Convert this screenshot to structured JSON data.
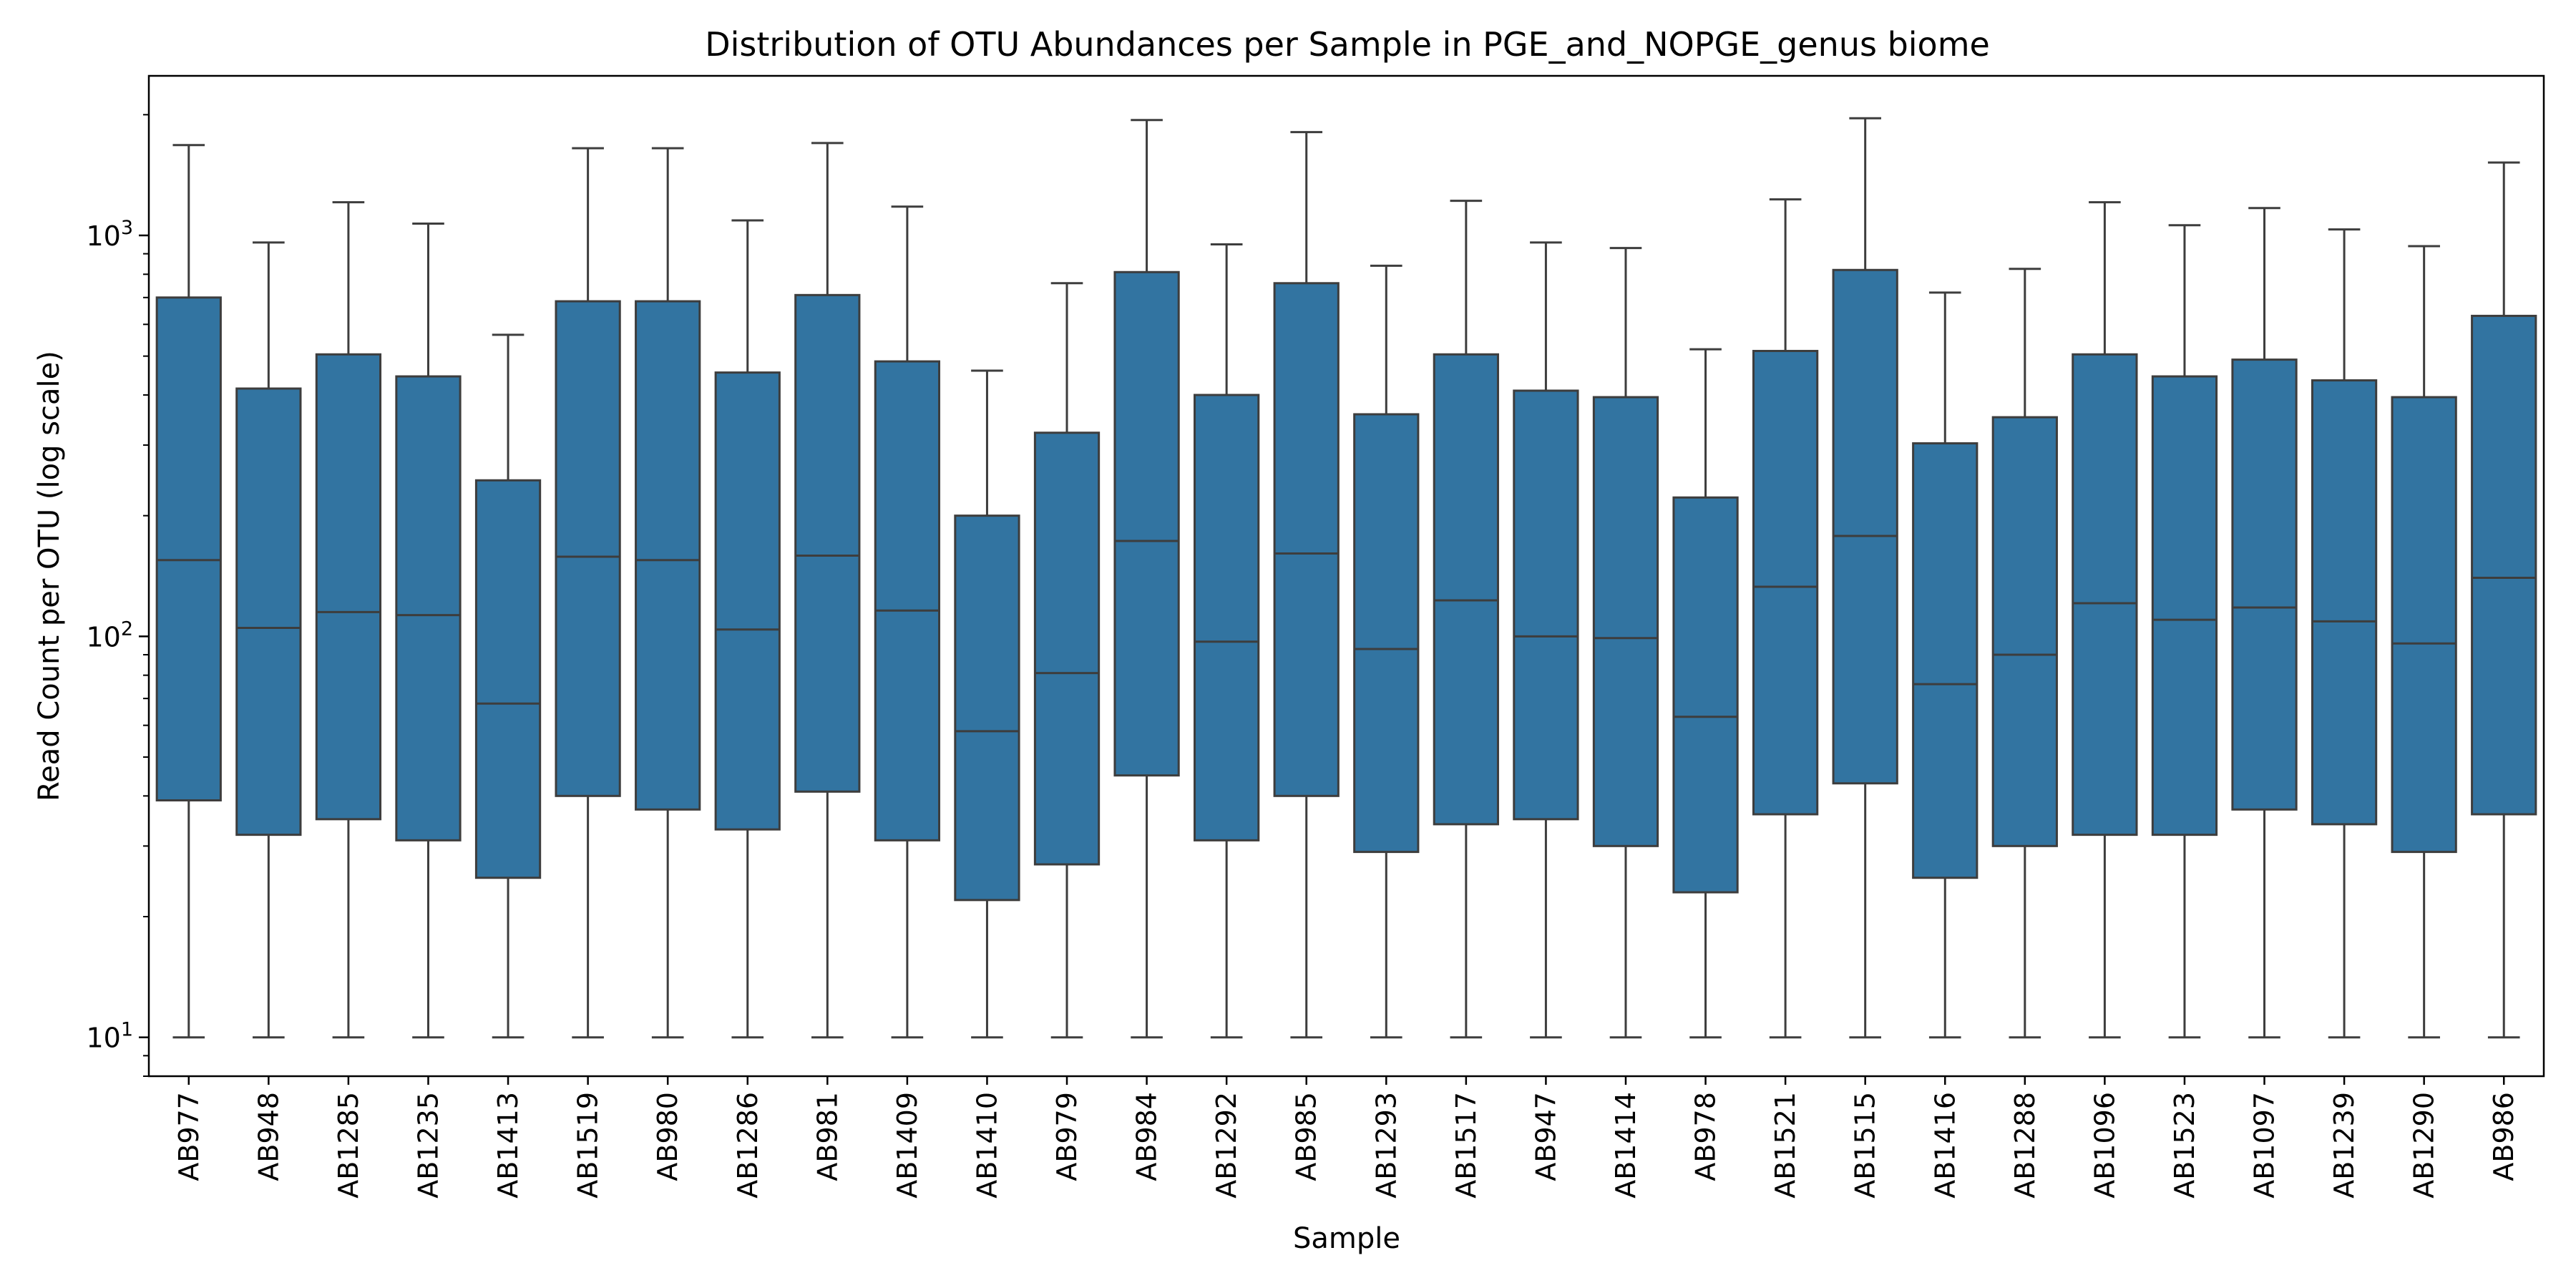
{
  "chart_data": {
    "type": "box",
    "title": "Distribution of OTU Abundances per Sample in  PGE_and_NOPGE_genus biome",
    "xlabel": "Sample",
    "ylabel": "Read Count per OTU (log scale)",
    "yscale": "log",
    "ylim": [
      8,
      2500
    ],
    "yticks": [
      {
        "value": 10,
        "base": "10",
        "exp": "1"
      },
      {
        "value": 100,
        "base": "10",
        "exp": "2"
      },
      {
        "value": 1000,
        "base": "10",
        "exp": "3"
      }
    ],
    "box_color": "#3274a1",
    "edge_color": "#3d3d3d",
    "categories": [
      "AB977",
      "AB948",
      "AB1285",
      "AB1235",
      "AB1413",
      "AB1519",
      "AB980",
      "AB1286",
      "AB981",
      "AB1409",
      "AB1410",
      "AB979",
      "AB984",
      "AB1292",
      "AB985",
      "AB1293",
      "AB1517",
      "AB947",
      "AB1414",
      "AB978",
      "AB1521",
      "AB1515",
      "AB1416",
      "AB1288",
      "AB1096",
      "AB1523",
      "AB1097",
      "AB1239",
      "AB1290",
      "AB986"
    ],
    "boxes": [
      {
        "whislo": 10,
        "q1": 39,
        "med": 155,
        "q3": 700,
        "whishi": 1680
      },
      {
        "whislo": 10,
        "q1": 32,
        "med": 105,
        "q3": 415,
        "whishi": 960
      },
      {
        "whislo": 10,
        "q1": 35,
        "med": 115,
        "q3": 505,
        "whishi": 1210
      },
      {
        "whislo": 10,
        "q1": 31,
        "med": 113,
        "q3": 445,
        "whishi": 1070
      },
      {
        "whislo": 10,
        "q1": 25,
        "med": 68,
        "q3": 245,
        "whishi": 565
      },
      {
        "whislo": 10,
        "q1": 40,
        "med": 158,
        "q3": 685,
        "whishi": 1650
      },
      {
        "whislo": 10,
        "q1": 37,
        "med": 155,
        "q3": 685,
        "whishi": 1650
      },
      {
        "whislo": 10,
        "q1": 33,
        "med": 104,
        "q3": 455,
        "whishi": 1090
      },
      {
        "whislo": 10,
        "q1": 41,
        "med": 159,
        "q3": 710,
        "whishi": 1700
      },
      {
        "whislo": 10,
        "q1": 31,
        "med": 116,
        "q3": 485,
        "whishi": 1180
      },
      {
        "whislo": 10,
        "q1": 22,
        "med": 58,
        "q3": 200,
        "whishi": 460
      },
      {
        "whislo": 10,
        "q1": 27,
        "med": 81,
        "q3": 322,
        "whishi": 760
      },
      {
        "whislo": 10,
        "q1": 45,
        "med": 173,
        "q3": 810,
        "whishi": 1940
      },
      {
        "whislo": 10,
        "q1": 31,
        "med": 97,
        "q3": 400,
        "whishi": 950
      },
      {
        "whislo": 10,
        "q1": 40,
        "med": 161,
        "q3": 760,
        "whishi": 1810
      },
      {
        "whislo": 10,
        "q1": 29,
        "med": 93,
        "q3": 358,
        "whishi": 840
      },
      {
        "whislo": 10,
        "q1": 34,
        "med": 123,
        "q3": 505,
        "whishi": 1220
      },
      {
        "whislo": 10,
        "q1": 35,
        "med": 100,
        "q3": 410,
        "whishi": 960
      },
      {
        "whislo": 10,
        "q1": 30,
        "med": 99,
        "q3": 395,
        "whishi": 930
      },
      {
        "whislo": 10,
        "q1": 23,
        "med": 63,
        "q3": 222,
        "whishi": 520
      },
      {
        "whislo": 10,
        "q1": 36,
        "med": 133,
        "q3": 515,
        "whishi": 1230
      },
      {
        "whislo": 10,
        "q1": 43,
        "med": 178,
        "q3": 820,
        "whishi": 1960
      },
      {
        "whislo": 10,
        "q1": 25,
        "med": 76,
        "q3": 303,
        "whishi": 720
      },
      {
        "whislo": 10,
        "q1": 30,
        "med": 90,
        "q3": 352,
        "whishi": 825
      },
      {
        "whislo": 10,
        "q1": 32,
        "med": 121,
        "q3": 505,
        "whishi": 1210
      },
      {
        "whislo": 10,
        "q1": 32,
        "med": 110,
        "q3": 445,
        "whishi": 1060
      },
      {
        "whislo": 10,
        "q1": 37,
        "med": 118,
        "q3": 490,
        "whishi": 1170
      },
      {
        "whislo": 10,
        "q1": 34,
        "med": 109,
        "q3": 435,
        "whishi": 1035
      },
      {
        "whislo": 10,
        "q1": 29,
        "med": 96,
        "q3": 395,
        "whishi": 940
      },
      {
        "whislo": 10,
        "q1": 36,
        "med": 140,
        "q3": 630,
        "whishi": 1520
      }
    ]
  }
}
